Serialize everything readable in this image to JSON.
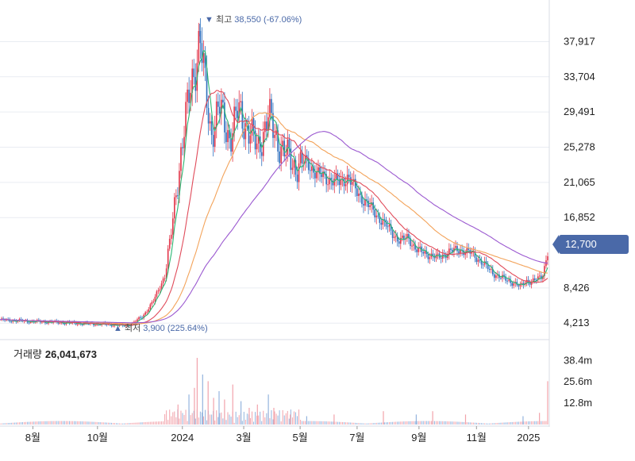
{
  "chart_data": {
    "type": "candlestick",
    "price_axis": {
      "ticks": [
        37917,
        33704,
        29491,
        25278,
        21065,
        16852,
        8426,
        4213
      ],
      "tick_labels": [
        "37,917",
        "33,704",
        "29,491",
        "25,278",
        "21,065",
        "16,852",
        "8,426",
        "4,213"
      ],
      "range": [
        3000,
        41000
      ]
    },
    "x_axis": {
      "labels": [
        "8월",
        "10월",
        "2024",
        "3월",
        "5월",
        "7월",
        "9월",
        "11월",
        "2025"
      ],
      "label_positions": [
        0.06,
        0.178,
        0.333,
        0.445,
        0.548,
        0.652,
        0.765,
        0.87,
        0.965
      ]
    },
    "current_price": {
      "value": 12700,
      "label": "12,700"
    },
    "high_annotation": {
      "marker": "▼",
      "prefix": "최고",
      "value": "38,550",
      "change": "(-67.06%)",
      "price": 38550
    },
    "low_annotation": {
      "marker": "▲",
      "prefix": "최저",
      "value": "3,900",
      "change": "(225.64%)",
      "price": 3900
    },
    "volume": {
      "title": "거래량",
      "value": "26,041,673",
      "ticks": [
        38.4,
        25.6,
        12.8
      ],
      "tick_labels": [
        "38.4m",
        "25.6m",
        "12.8m"
      ],
      "range_max": 50
    },
    "price_path": [
      [
        0.0,
        4600
      ],
      [
        0.03,
        4500
      ],
      [
        0.06,
        4400
      ],
      [
        0.09,
        4350
      ],
      [
        0.12,
        4250
      ],
      [
        0.15,
        4150
      ],
      [
        0.18,
        4100
      ],
      [
        0.21,
        4000
      ],
      [
        0.225,
        3900
      ],
      [
        0.24,
        4100
      ],
      [
        0.26,
        5000
      ],
      [
        0.28,
        6800
      ],
      [
        0.3,
        9800
      ],
      [
        0.31,
        13500
      ],
      [
        0.32,
        19000
      ],
      [
        0.33,
        24500
      ],
      [
        0.34,
        29000
      ],
      [
        0.35,
        33000
      ],
      [
        0.36,
        36500
      ],
      [
        0.365,
        38550
      ],
      [
        0.375,
        32000
      ],
      [
        0.385,
        27000
      ],
      [
        0.4,
        30000
      ],
      [
        0.41,
        28000
      ],
      [
        0.42,
        26500
      ],
      [
        0.435,
        29500
      ],
      [
        0.45,
        28000
      ],
      [
        0.47,
        25000
      ],
      [
        0.49,
        29000
      ],
      [
        0.5,
        27000
      ],
      [
        0.52,
        24500
      ],
      [
        0.54,
        23000
      ],
      [
        0.56,
        23500
      ],
      [
        0.58,
        22000
      ],
      [
        0.6,
        21500
      ],
      [
        0.62,
        21000
      ],
      [
        0.635,
        21800
      ],
      [
        0.65,
        20000
      ],
      [
        0.67,
        18500
      ],
      [
        0.69,
        17000
      ],
      [
        0.71,
        15500
      ],
      [
        0.73,
        14000
      ],
      [
        0.745,
        14500
      ],
      [
        0.76,
        13000
      ],
      [
        0.78,
        12500
      ],
      [
        0.8,
        12000
      ],
      [
        0.82,
        12800
      ],
      [
        0.84,
        13000
      ],
      [
        0.86,
        12600
      ],
      [
        0.88,
        11500
      ],
      [
        0.9,
        10200
      ],
      [
        0.92,
        9500
      ],
      [
        0.94,
        9000
      ],
      [
        0.95,
        8500
      ],
      [
        0.96,
        9300
      ],
      [
        0.97,
        9200
      ],
      [
        0.98,
        9400
      ],
      [
        0.99,
        9800
      ],
      [
        1.0,
        12700
      ]
    ],
    "volume_spikes": [
      [
        0.325,
        12
      ],
      [
        0.345,
        18
      ],
      [
        0.355,
        22
      ],
      [
        0.36,
        40
      ],
      [
        0.37,
        30
      ],
      [
        0.38,
        26
      ],
      [
        0.39,
        16
      ],
      [
        0.4,
        20
      ],
      [
        0.41,
        15
      ],
      [
        0.425,
        24
      ],
      [
        0.44,
        14
      ],
      [
        0.455,
        10
      ],
      [
        0.47,
        12
      ],
      [
        0.49,
        18
      ],
      [
        0.5,
        10
      ],
      [
        0.53,
        6
      ],
      [
        0.56,
        5
      ],
      [
        0.61,
        6
      ],
      [
        0.7,
        8
      ],
      [
        0.76,
        6
      ],
      [
        0.79,
        8
      ],
      [
        0.85,
        6
      ],
      [
        0.955,
        5
      ],
      [
        0.985,
        7
      ],
      [
        1.0,
        26
      ]
    ],
    "colors": {
      "up": "#e2364a",
      "down": "#2f6fbe",
      "ma5": "#2bb673",
      "ma20": "#e04b5a",
      "ma60": "#f3a35a",
      "ma120": "#9b59d0",
      "grid": "#e9ecf2",
      "axis_text": "#222222",
      "badge": "#4a69a8"
    }
  }
}
